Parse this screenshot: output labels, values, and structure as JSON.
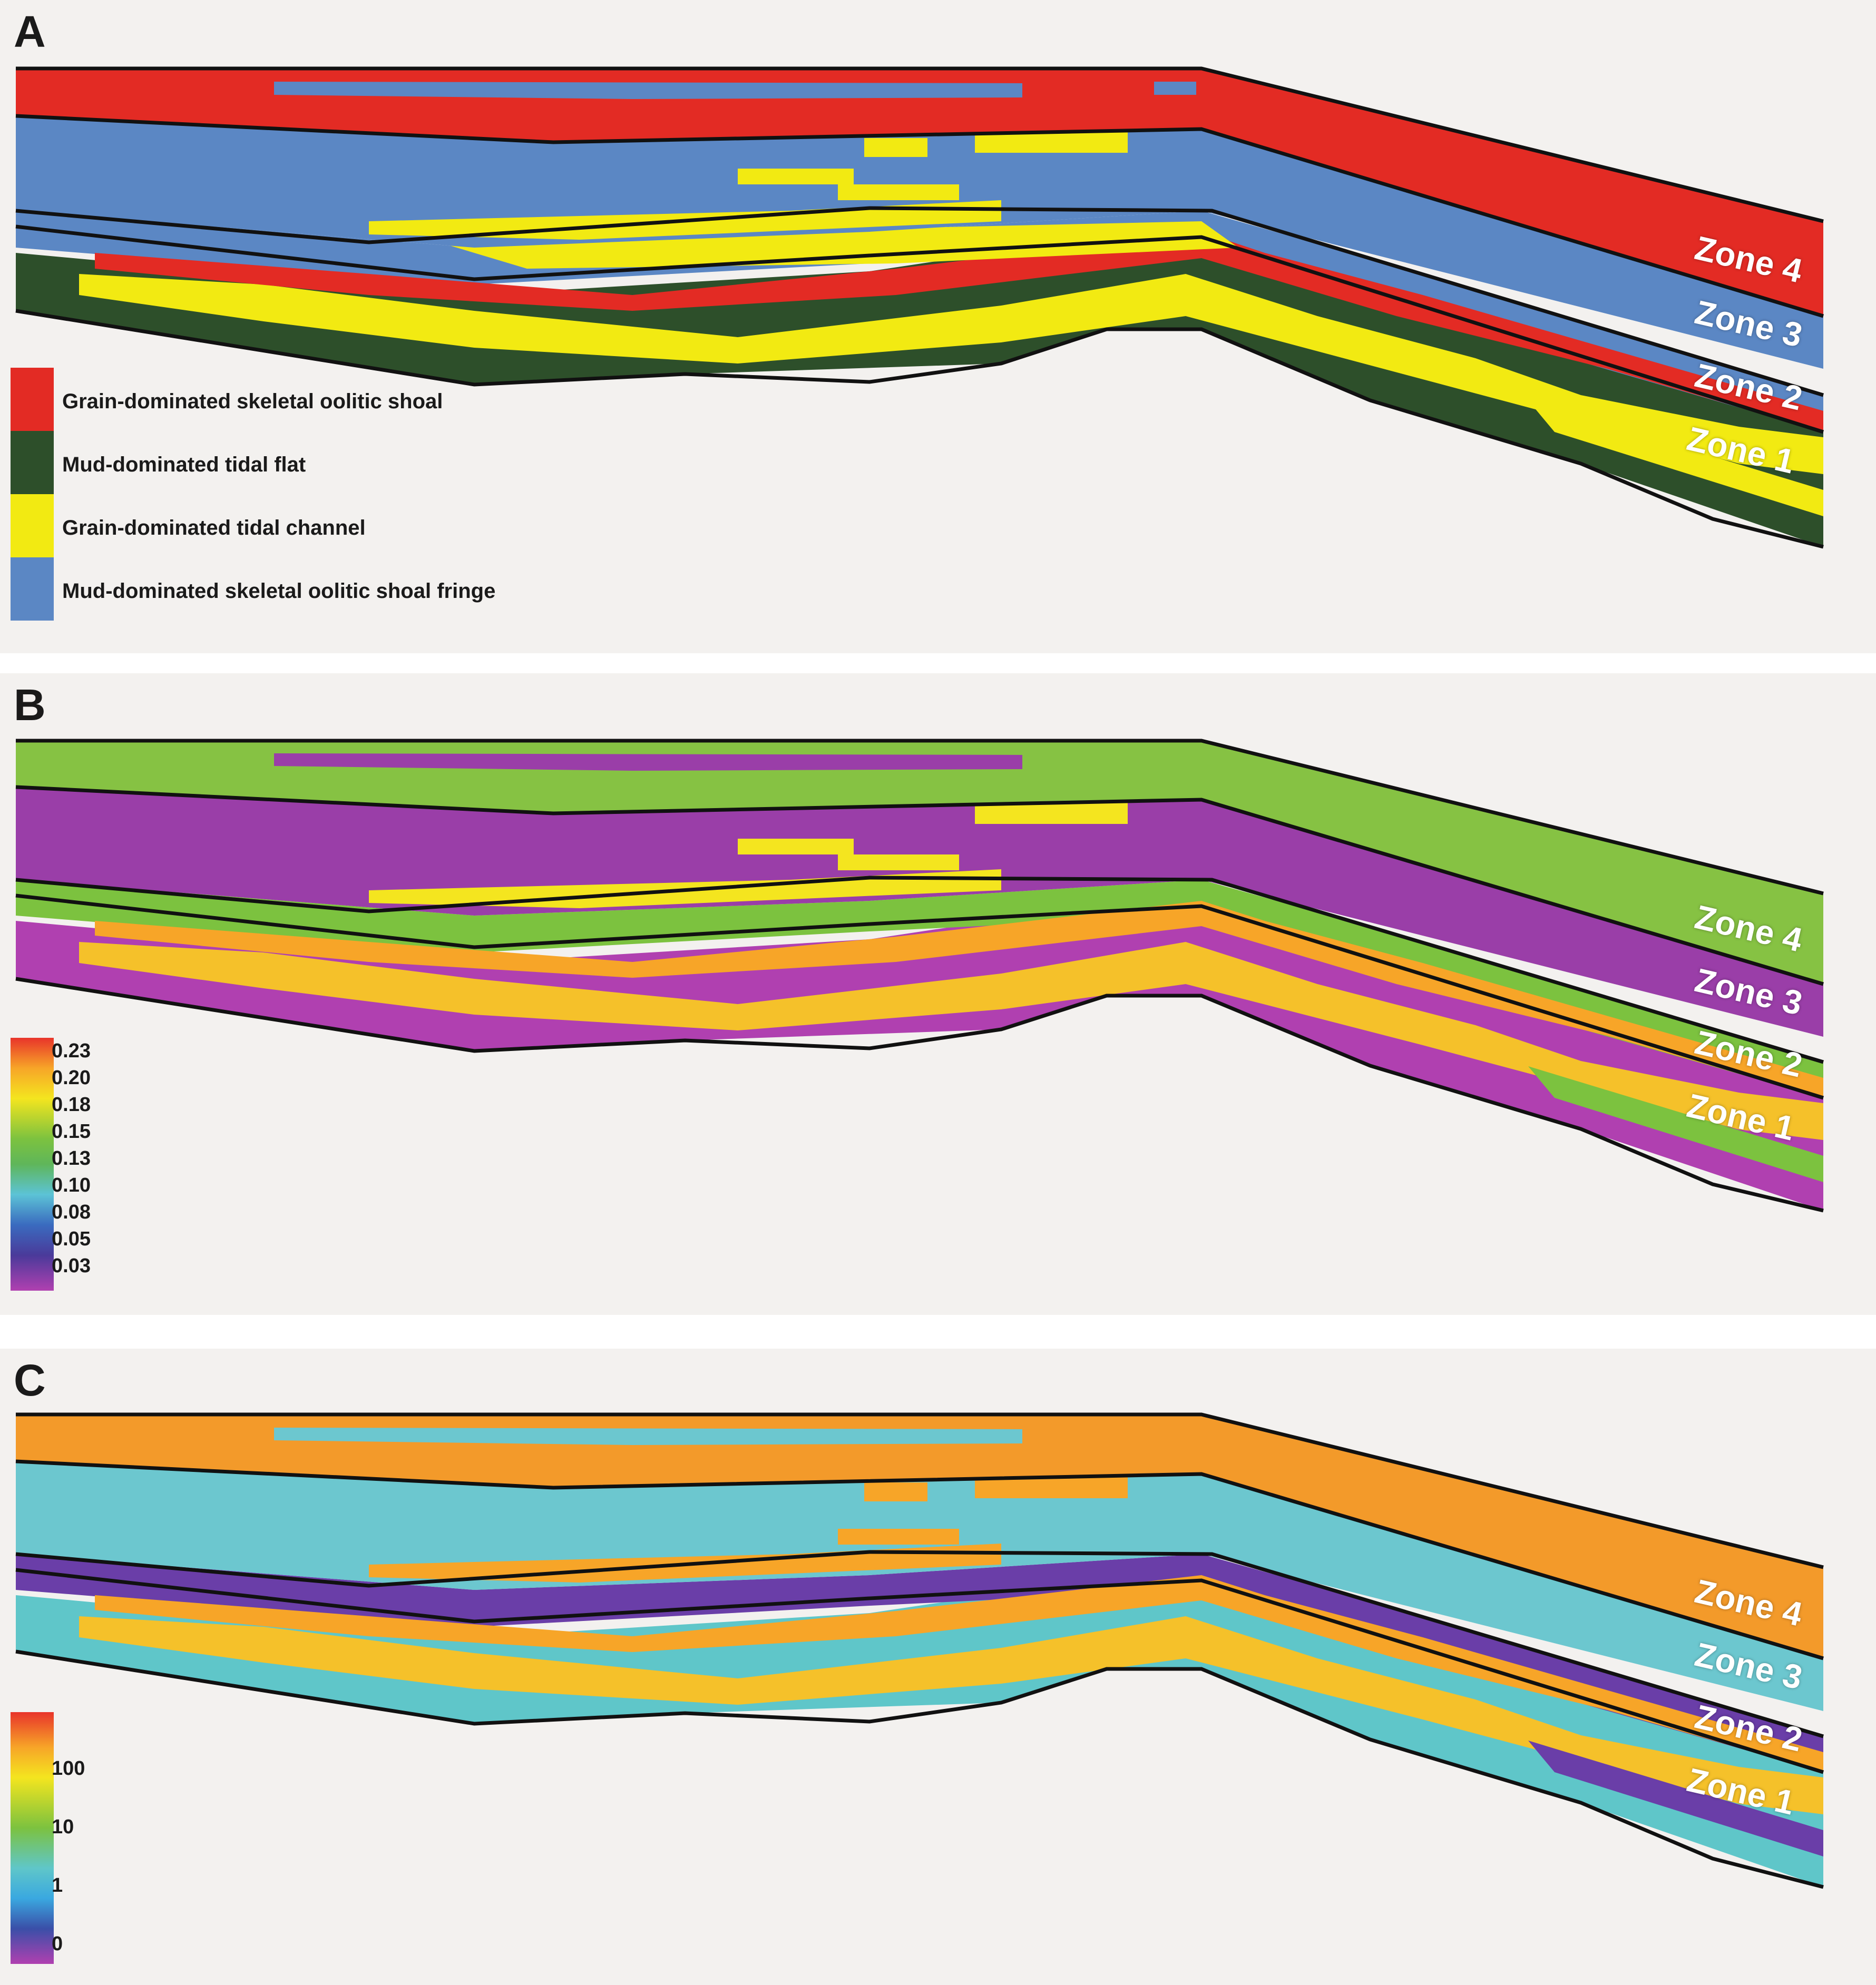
{
  "panels": {
    "a": {
      "letter": "A",
      "zones": [
        "Zone 4",
        "Zone 3",
        "Zone 2",
        "Zone 1"
      ],
      "legend": [
        {
          "label": "Grain-dominated skeletal oolitic shoal",
          "color": "#e32b24"
        },
        {
          "label": "Mud-dominated tidal flat",
          "color": "#2d4f2a"
        },
        {
          "label": "Grain-dominated tidal channel",
          "color": "#f2ea12"
        },
        {
          "label": "Mud-dominated skeletal oolitic shoal fringe",
          "color": "#5b87c4"
        }
      ]
    },
    "b": {
      "letter": "B",
      "zones": [
        "Zone 4",
        "Zone 3",
        "Zone 2",
        "Zone 1"
      ],
      "colorbar_ticks": [
        "0.23",
        "0.20",
        "0.18",
        "0.15",
        "0.13",
        "0.10",
        "0.08",
        "0.05",
        "0.03"
      ]
    },
    "c": {
      "letter": "C",
      "zones": [
        "Zone 4",
        "Zone 3",
        "Zone 2",
        "Zone 1"
      ],
      "colorbar_ticks": [
        "100",
        "10",
        "1",
        "0"
      ]
    }
  },
  "colors": {
    "shoal": "#e32b24",
    "tidal_flat": "#2d4f2a",
    "channel": "#f2ea12",
    "fringe": "#5b87c4",
    "porosity_ramp": [
      "#e8342a",
      "#f7a528",
      "#f4e51f",
      "#7cc23f",
      "#5fb65a",
      "#5cc3d6",
      "#3a6bbf",
      "#4a3a9a",
      "#b040b0"
    ],
    "perm_ramp": [
      "#e8342a",
      "#f7a528",
      "#f4e51f",
      "#7cc23f",
      "#5fc6c9",
      "#3aa8e0",
      "#3a4fa8",
      "#b040b0"
    ]
  }
}
